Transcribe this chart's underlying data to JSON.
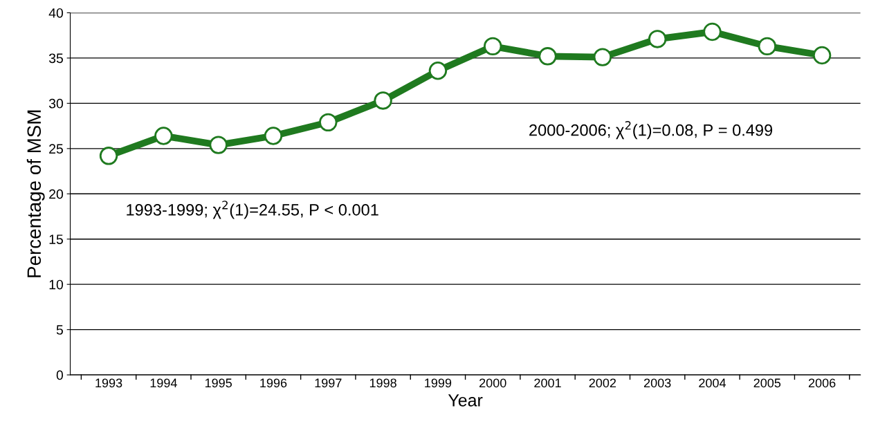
{
  "chart_data": {
    "type": "line",
    "xlabel": "Year",
    "ylabel": "Percentage of MSM",
    "categories": [
      "1993",
      "1994",
      "1995",
      "1996",
      "1997",
      "1998",
      "1999",
      "2000",
      "2001",
      "2002",
      "2003",
      "2004",
      "2005",
      "2006"
    ],
    "series": [
      {
        "color": "#1f7a1f",
        "values": [
          24.2,
          26.4,
          25.4,
          26.4,
          27.9,
          30.3,
          33.6,
          36.3,
          35.2,
          35.1,
          37.1,
          37.9,
          36.3,
          35.3
        ]
      }
    ],
    "ylim": [
      0,
      40
    ],
    "yticks": [
      0,
      5,
      10,
      15,
      20,
      25,
      30,
      35,
      40
    ],
    "grid": "y",
    "marker": "circle",
    "line_style": "solid",
    "legend": false,
    "annotations": [
      "1993-1999; χ$^{2}$(1)=24.55, P < 0.001",
      "2000-2006; χ$^{2}$(1)=0.08, P = 0.499"
    ]
  }
}
